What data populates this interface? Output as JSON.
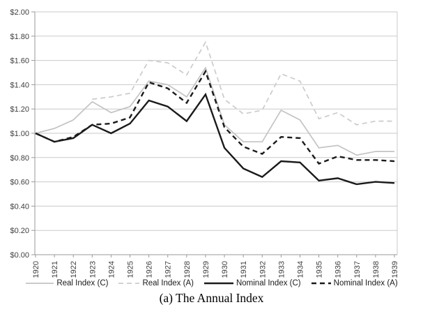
{
  "chart_data": {
    "type": "line",
    "title": "(a) The Annual Index",
    "grid": "horizontal",
    "legend_position": "bottom-center",
    "ylim": [
      0.0,
      2.0
    ],
    "ytick_step": 0.2,
    "ytick_labels": [
      "$0.00",
      "$0.20",
      "$0.40",
      "$0.60",
      "$0.80",
      "$1.00",
      "$1.20",
      "$1.40",
      "$1.60",
      "$1.80",
      "$2.00"
    ],
    "xtick_labels": [
      "1920",
      "1921",
      "1922",
      "1923",
      "1924",
      "1925",
      "1926",
      "1927",
      "1928",
      "1929",
      "1930",
      "1931",
      "1932",
      "1933",
      "1934",
      "1935",
      "1936",
      "1937",
      "1938",
      "1939"
    ],
    "axis_color": "#9a9a9a",
    "grid_color": "#c9c9c9",
    "tick_label_color": "#3f3f3f",
    "series": [
      {
        "name": "Real Index (C)",
        "color": "#c3c3c3",
        "line": "solid",
        "width": 1.7,
        "values": [
          1.0,
          1.04,
          1.11,
          1.26,
          1.17,
          1.22,
          1.43,
          1.4,
          1.3,
          1.54,
          1.07,
          0.93,
          0.93,
          1.19,
          1.11,
          0.88,
          0.9,
          0.82,
          0.85,
          0.85
        ]
      },
      {
        "name": "Real Index (A)",
        "color": "#cbcbcb",
        "line": "dashed",
        "width": 1.7,
        "values": [
          null,
          null,
          null,
          1.28,
          1.3,
          1.33,
          1.6,
          1.58,
          1.48,
          1.75,
          1.28,
          1.16,
          1.19,
          1.49,
          1.43,
          1.12,
          1.17,
          1.07,
          1.1,
          1.1
        ]
      },
      {
        "name": "Nominal Index (C)",
        "color": "#1a1a1a",
        "line": "solid",
        "width": 2.4,
        "values": [
          1.0,
          0.93,
          0.96,
          1.07,
          1.0,
          1.08,
          1.27,
          1.22,
          1.1,
          1.32,
          0.88,
          0.71,
          0.64,
          0.77,
          0.76,
          0.61,
          0.63,
          0.58,
          0.6,
          0.59
        ]
      },
      {
        "name": "Nominal Index (A)",
        "color": "#1a1a1a",
        "line": "dashed",
        "width": 2.4,
        "values": [
          1.0,
          0.93,
          0.97,
          1.07,
          1.08,
          1.13,
          1.42,
          1.37,
          1.25,
          1.51,
          1.05,
          0.89,
          0.83,
          0.97,
          0.96,
          0.75,
          0.81,
          0.78,
          0.78,
          0.77
        ]
      }
    ]
  }
}
